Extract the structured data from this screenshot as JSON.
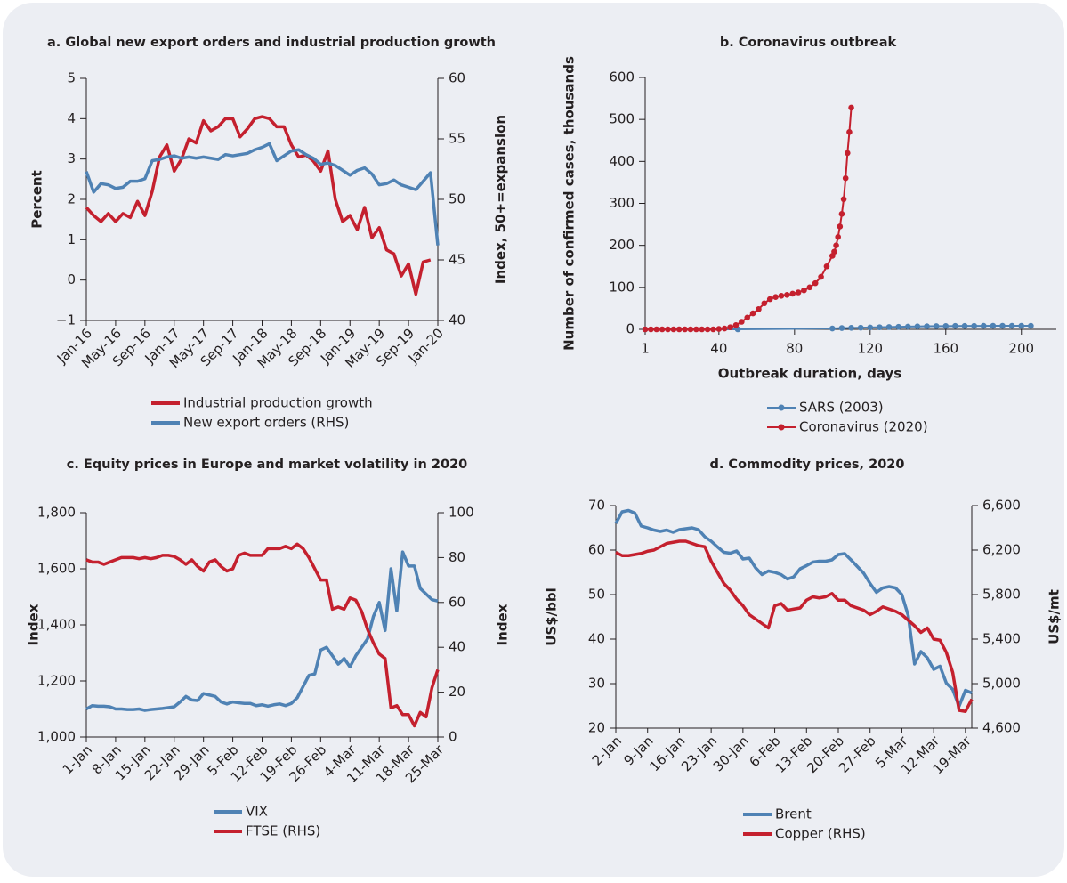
{
  "chart_data": [
    {
      "type": "line",
      "title": "a. Global new export orders and industrial production growth",
      "categories": [
        "Jan-16",
        null,
        null,
        null,
        "May-16",
        null,
        null,
        null,
        "Sep-16",
        null,
        null,
        null,
        "Jan-17",
        null,
        null,
        null,
        "May-17",
        null,
        null,
        null,
        "Sep-17",
        null,
        null,
        null,
        "Jan-18",
        null,
        null,
        null,
        "May-18",
        null,
        null,
        null,
        "Sep-18",
        null,
        null,
        null,
        "Jan-19",
        null,
        null,
        null,
        "May-19",
        null,
        null,
        null,
        "Sep-19",
        null,
        null,
        null,
        "Jan-20"
      ],
      "series": [
        {
          "name": "Industrial production growth",
          "color": "#c4202e",
          "values": [
            1.8,
            1.6,
            1.45,
            1.65,
            1.45,
            1.65,
            1.55,
            1.95,
            1.6,
            2.2,
            3.05,
            3.35,
            2.7,
            3.0,
            3.5,
            3.4,
            3.95,
            3.7,
            3.8,
            4.0,
            4.0,
            3.55,
            3.75,
            4.0,
            4.05,
            4.0,
            3.8,
            3.8,
            3.35,
            3.05,
            3.1,
            2.95,
            2.7,
            3.2,
            2.0,
            1.45,
            1.6,
            1.25,
            1.8,
            1.05,
            1.3,
            0.75,
            0.65,
            0.1,
            0.4,
            -0.35,
            0.45,
            0.5,
            null
          ]
        },
        {
          "name": "New export orders (RHS)",
          "color": "#4f82b4",
          "axis": "y2",
          "values": [
            52.3,
            50.6,
            51.3,
            51.2,
            50.9,
            51.0,
            51.5,
            51.5,
            51.7,
            53.2,
            53.3,
            53.5,
            53.6,
            53.4,
            53.5,
            53.4,
            53.5,
            53.4,
            53.3,
            53.7,
            53.6,
            53.7,
            53.8,
            54.1,
            54.3,
            54.6,
            53.2,
            53.6,
            54.0,
            54.1,
            53.7,
            53.4,
            52.9,
            53.0,
            52.8,
            52.4,
            52.0,
            52.4,
            52.6,
            52.1,
            51.2,
            51.3,
            51.6,
            51.2,
            51.0,
            50.8,
            51.5,
            52.2,
            46.2
          ]
        }
      ],
      "ylabel": "Percent",
      "y2label": "Index, 50+=expansion",
      "ylim": [
        -1,
        5
      ],
      "yticks": [
        {
          "value": -1,
          "label": "−1"
        },
        0,
        1,
        2,
        3,
        4,
        5
      ],
      "y2lim": [
        40,
        60
      ],
      "y2ticks": [
        40,
        45,
        50,
        55,
        60
      ]
    },
    {
      "type": "line",
      "markers": true,
      "title": "b. Coronavirus outbreak",
      "xlabel": "Outbreak duration, days",
      "ylabel": "Number of confirmed cases, thousands",
      "xlim": [
        1,
        210
      ],
      "xticks": [
        1,
        40,
        80,
        120,
        160,
        200
      ],
      "ylim": [
        0,
        600
      ],
      "yticks": [
        0,
        100,
        200,
        300,
        400,
        500,
        600
      ],
      "series": [
        {
          "name": "SARS (2003)",
          "color": "#4f82b4",
          "x": [
            1,
            50,
            100,
            105,
            110,
            115,
            120,
            125,
            130,
            135,
            140,
            145,
            150,
            155,
            160,
            165,
            170,
            175,
            180,
            185,
            190,
            195,
            200,
            205
          ],
          "values": [
            0,
            0,
            2,
            3,
            3.5,
            4,
            4.5,
            5,
            5.5,
            6,
            6.5,
            7,
            7.3,
            7.6,
            7.8,
            8,
            8.1,
            8.2,
            8.3,
            8.4,
            8.4,
            8.4,
            8.4,
            8.4
          ]
        },
        {
          "name": "Coronavirus (2020)",
          "color": "#c4202e",
          "x": [
            1,
            4,
            7,
            10,
            13,
            16,
            19,
            22,
            25,
            28,
            31,
            34,
            37,
            40,
            43,
            46,
            49,
            52,
            55,
            58,
            61,
            64,
            67,
            70,
            73,
            76,
            79,
            82,
            85,
            88,
            91,
            94,
            97,
            100,
            101,
            102,
            103,
            104,
            105,
            106,
            107,
            108,
            109,
            110
          ],
          "values": [
            0,
            0,
            0,
            0,
            0,
            0,
            0,
            0,
            0,
            0,
            0,
            0,
            0,
            1,
            2,
            5,
            10,
            18,
            28,
            38,
            48,
            62,
            72,
            77,
            80,
            82,
            85,
            88,
            93,
            100,
            110,
            125,
            150,
            175,
            185,
            200,
            220,
            245,
            275,
            310,
            360,
            420,
            470,
            528
          ]
        }
      ]
    },
    {
      "type": "line",
      "title": "c. Equity prices in Europe and market volatility in 2020",
      "categories": [
        "1-Jan",
        null,
        null,
        null,
        null,
        "8-Jan",
        null,
        null,
        null,
        null,
        "15-Jan",
        null,
        null,
        null,
        null,
        "22-Jan",
        null,
        null,
        null,
        null,
        "29-Jan",
        null,
        null,
        null,
        null,
        "5-Feb",
        null,
        null,
        null,
        null,
        "12-Feb",
        null,
        null,
        null,
        null,
        "19-Feb",
        null,
        null,
        null,
        null,
        "26-Feb",
        null,
        null,
        null,
        null,
        "4-Mar",
        null,
        null,
        null,
        null,
        "11-Mar",
        null,
        null,
        null,
        null,
        "18-Mar",
        null,
        null,
        null,
        null,
        "25-Mar"
      ],
      "series": [
        {
          "name": "VIX",
          "color": "#4f82b4",
          "values": [
            1100,
            1112,
            1110,
            1110,
            1108,
            1100,
            1100,
            1098,
            1098,
            1100,
            1095,
            1098,
            1100,
            1102,
            1105,
            1108,
            1125,
            1145,
            1132,
            1130,
            1155,
            1150,
            1145,
            1125,
            1118,
            1125,
            1122,
            1120,
            1120,
            1112,
            1115,
            1110,
            1115,
            1118,
            1112,
            1120,
            1140,
            1180,
            1220,
            1225,
            1310,
            1320,
            1290,
            1260,
            1280,
            1250,
            1290,
            1320,
            1350,
            1430,
            1480,
            1380,
            1600,
            1450,
            1660,
            1610,
            1610,
            1530,
            1510,
            1490,
            1485
          ]
        },
        {
          "name": "FTSE (RHS)",
          "color": "#c4202e",
          "axis": "y2",
          "values": [
            79,
            78,
            78,
            77,
            78,
            79,
            80,
            80,
            80,
            79.5,
            80,
            79.5,
            80,
            81,
            81,
            80.5,
            79,
            77,
            79,
            76,
            74,
            78,
            79,
            76,
            74,
            75,
            81,
            82,
            81,
            81,
            81,
            84,
            84,
            84,
            85,
            84,
            86,
            84,
            80,
            75,
            70,
            70,
            57,
            58,
            57,
            62,
            61,
            56,
            48,
            42,
            37,
            35,
            13,
            14,
            10,
            10,
            5,
            11,
            9,
            22,
            30
          ]
        }
      ],
      "ylabel": "Index",
      "y2label": "Index",
      "ylim": [
        1000,
        1800
      ],
      "yticks": [
        {
          "value": 1000,
          "label": "1,000"
        },
        {
          "value": 1200,
          "label": "1,200"
        },
        {
          "value": 1400,
          "label": "1,400"
        },
        {
          "value": 1600,
          "label": "1,600"
        },
        {
          "value": 1800,
          "label": "1,800"
        }
      ],
      "y2lim": [
        0,
        100
      ],
      "y2ticks": [
        0,
        20,
        40,
        60,
        80,
        100
      ]
    },
    {
      "type": "line",
      "title": "d. Commodity prices, 2020",
      "categories": [
        "2-Jan",
        null,
        null,
        null,
        null,
        "9-Jan",
        null,
        null,
        null,
        null,
        "16-Jan",
        null,
        null,
        null,
        null,
        "23-Jan",
        null,
        null,
        null,
        null,
        "30-Jan",
        null,
        null,
        null,
        null,
        "6-Feb",
        null,
        null,
        null,
        null,
        "13-Feb",
        null,
        null,
        null,
        null,
        "20-Feb",
        null,
        null,
        null,
        null,
        "27-Feb",
        null,
        null,
        null,
        null,
        "5-Mar",
        null,
        null,
        null,
        null,
        "12-Mar",
        null,
        null,
        null,
        null,
        "19-Mar",
        null
      ],
      "series": [
        {
          "name": "Brent",
          "color": "#4f82b4",
          "values": [
            66,
            68.6,
            68.9,
            68.3,
            65.4,
            65,
            64.5,
            64.2,
            64.5,
            64,
            64.6,
            64.8,
            65,
            64.6,
            63,
            62,
            60.7,
            59.5,
            59.3,
            59.8,
            58,
            58.2,
            56,
            54.5,
            55.3,
            55,
            54.5,
            53.5,
            54,
            55.8,
            56.5,
            57.3,
            57.5,
            57.5,
            57.8,
            59,
            59.2,
            57.8,
            56.3,
            54.8,
            52.5,
            50.5,
            51.5,
            51.8,
            51.5,
            50,
            45.3,
            34.4,
            37.2,
            35.8,
            33.2,
            33.9,
            30.1,
            28.7,
            24.9,
            28.5,
            27.9
          ]
        },
        {
          "name": "Copper (RHS)",
          "color": "#c4202e",
          "axis": "y2",
          "values": [
            6180,
            6150,
            6150,
            6160,
            6170,
            6190,
            6200,
            6230,
            6260,
            6270,
            6280,
            6280,
            6260,
            6240,
            6230,
            6100,
            6000,
            5900,
            5840,
            5760,
            5700,
            5620,
            5580,
            5540,
            5500,
            5700,
            5720,
            5660,
            5670,
            5680,
            5750,
            5780,
            5770,
            5780,
            5810,
            5750,
            5750,
            5700,
            5680,
            5660,
            5620,
            5650,
            5690,
            5670,
            5650,
            5620,
            5570,
            5520,
            5460,
            5500,
            5400,
            5390,
            5280,
            5100,
            4760,
            4750,
            4860
          ]
        }
      ],
      "ylabel": "US$/bbl",
      "y2label": "US$/mt",
      "ylim": [
        20,
        70
      ],
      "yticks": [
        20,
        30,
        40,
        50,
        60,
        70
      ],
      "y2lim": [
        4600,
        6600
      ],
      "y2ticks": [
        {
          "value": 4600,
          "label": "4,600"
        },
        {
          "value": 5000,
          "label": "5,000"
        },
        {
          "value": 5400,
          "label": "5,400"
        },
        {
          "value": 5800,
          "label": "5,800"
        },
        {
          "value": 6200,
          "label": "6,200"
        },
        {
          "value": 6600,
          "label": "6,600"
        }
      ]
    }
  ]
}
